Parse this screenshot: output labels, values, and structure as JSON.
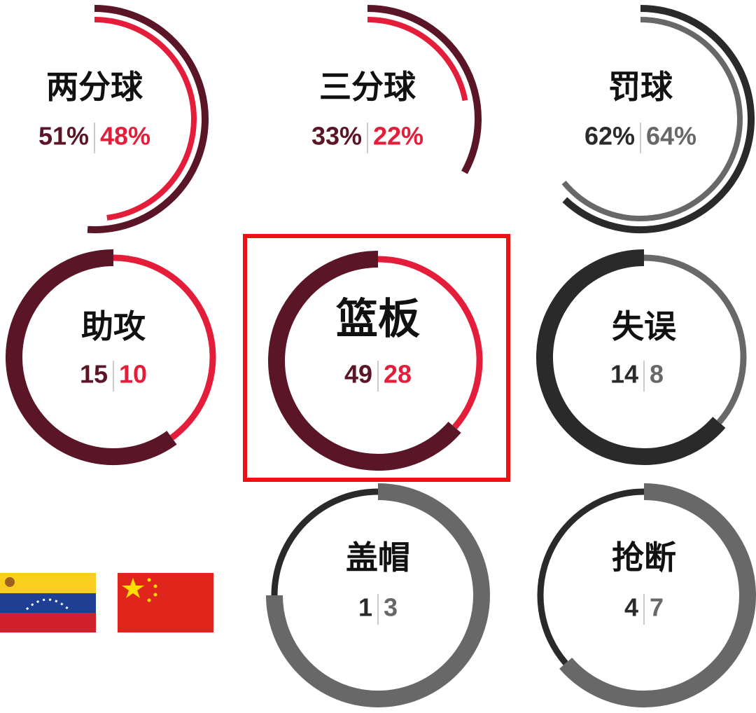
{
  "chart_data": [
    {
      "type": "ring-pct",
      "title": "两分球",
      "values": [
        51,
        48
      ],
      "value_labels": [
        "51%",
        "48%"
      ],
      "colors": [
        "#5a1526",
        "#e41e3a"
      ]
    },
    {
      "type": "ring-pct",
      "title": "三分球",
      "values": [
        33,
        22
      ],
      "value_labels": [
        "33%",
        "22%"
      ],
      "colors": [
        "#5a1526",
        "#e41e3a"
      ]
    },
    {
      "type": "ring-pct",
      "title": "罚球",
      "values": [
        62,
        64
      ],
      "value_labels": [
        "62%",
        "64%"
      ],
      "colors": [
        "#2a2a2a",
        "#686868"
      ]
    },
    {
      "type": "donut",
      "title": "助攻",
      "values": [
        15,
        10
      ],
      "colors": [
        "#5a1526",
        "#e41e3a"
      ]
    },
    {
      "type": "donut",
      "title": "篮板",
      "values": [
        49,
        28
      ],
      "colors": [
        "#5a1526",
        "#e41e3a"
      ]
    },
    {
      "type": "donut",
      "title": "失误",
      "values": [
        14,
        8
      ],
      "colors": [
        "#2a2a2a",
        "#686868"
      ]
    },
    {
      "type": "donut",
      "title": "盖帽",
      "values": [
        1,
        3
      ],
      "colors": [
        "#2a2a2a",
        "#686868"
      ]
    },
    {
      "type": "donut",
      "title": "抢断",
      "values": [
        4,
        7
      ],
      "colors": [
        "#2a2a2a",
        "#686868"
      ]
    }
  ]
}
